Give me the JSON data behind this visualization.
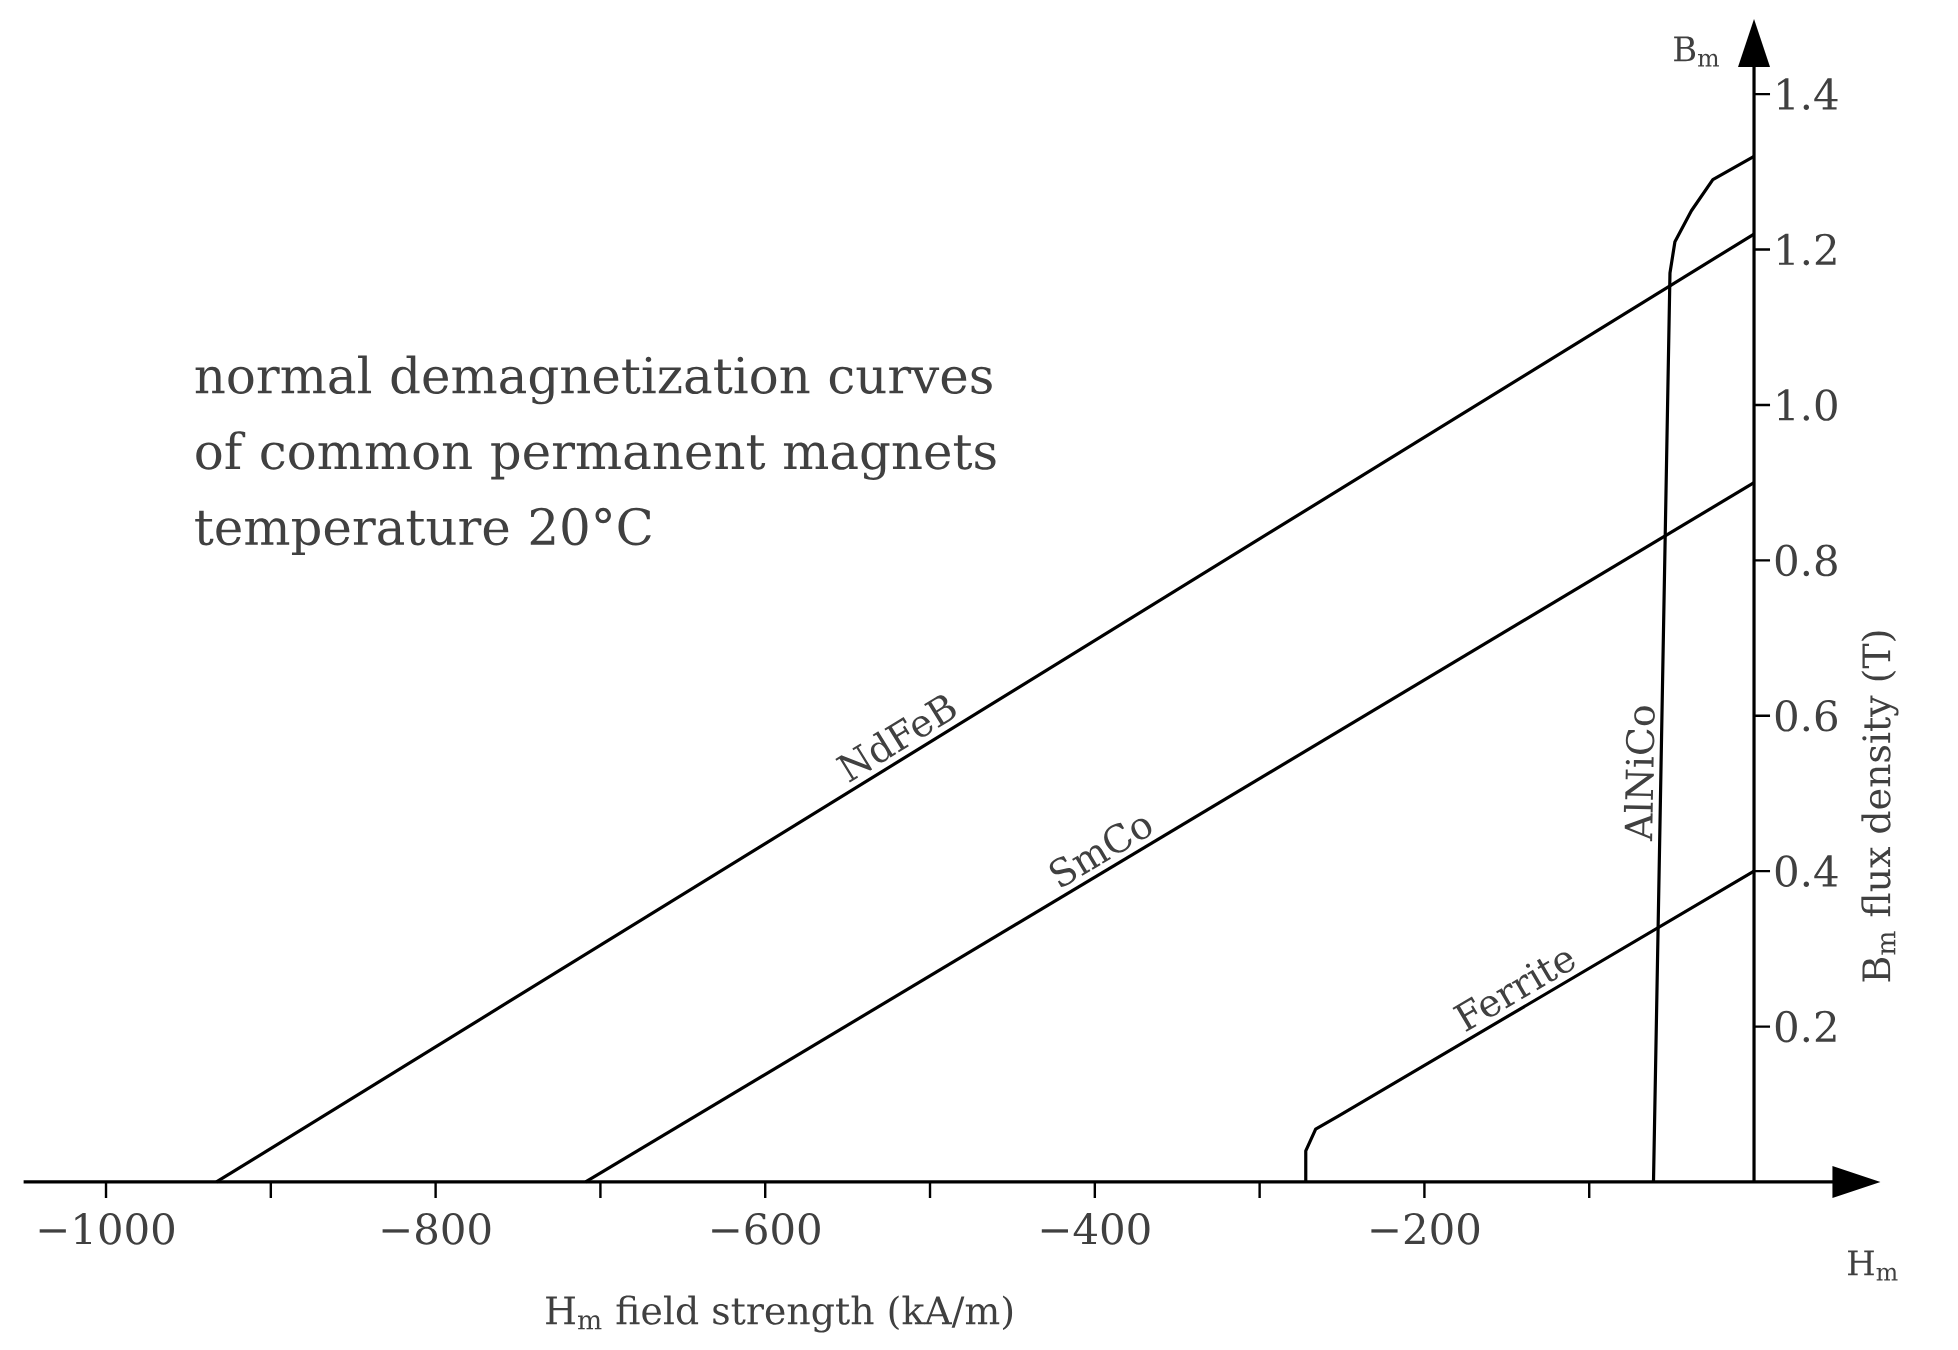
{
  "chart_data": {
    "type": "line",
    "title": "normal demagnetization curves of common permanent magnets",
    "subtitle": "temperature  20°C",
    "xlabel": "H$_{m}$  field strength  (kA/m)",
    "ylabel": "B$_{m}$  flux density  (T)",
    "annotations": [
      "H$_{m}$",
      "B$_{m}$"
    ],
    "xlim": [
      -1050,
      50
    ],
    "ylim": [
      0,
      1.44
    ],
    "xticks": [
      {
        "value": -1000,
        "label": "−1000"
      },
      {
        "value": -900,
        "label": null
      },
      {
        "value": -800,
        "label": "−800"
      },
      {
        "value": -700,
        "label": null
      },
      {
        "value": -600,
        "label": "−600"
      },
      {
        "value": -500,
        "label": null
      },
      {
        "value": -400,
        "label": "−400"
      },
      {
        "value": -300,
        "label": null
      },
      {
        "value": -200,
        "label": "−200"
      },
      {
        "value": -100,
        "label": null
      }
    ],
    "yticks": [
      {
        "value": 0.2,
        "label": "0.2"
      },
      {
        "value": 0.4,
        "label": "0.4"
      },
      {
        "value": 0.6,
        "label": "0.6"
      },
      {
        "value": 0.8,
        "label": "0.8"
      },
      {
        "value": 1.0,
        "label": "1.0"
      },
      {
        "value": 1.2,
        "label": "1.2"
      },
      {
        "value": 1.4,
        "label": "1.4"
      }
    ],
    "marker": "none",
    "line_style": "solid",
    "series": [
      {
        "name": "NdFeB",
        "color": "#000000",
        "x": [
          -933,
          0
        ],
        "values": [
          0,
          1.22
        ]
      },
      {
        "name": "SmCo",
        "color": "#000000",
        "x": [
          -709,
          0
        ],
        "values": [
          0,
          0.9
        ]
      },
      {
        "name": "Ferrite",
        "color": "#000000",
        "x": [
          -272,
          -272,
          -266,
          -252,
          0
        ],
        "values": [
          0,
          0.04,
          0.068,
          0.085,
          0.4
        ]
      },
      {
        "name": "AlNiCo",
        "color": "#000000",
        "x": [
          -61,
          -51,
          -48,
          -38,
          -25,
          0
        ],
        "values": [
          0,
          1.17,
          1.21,
          1.25,
          1.29,
          1.32
        ]
      }
    ]
  }
}
